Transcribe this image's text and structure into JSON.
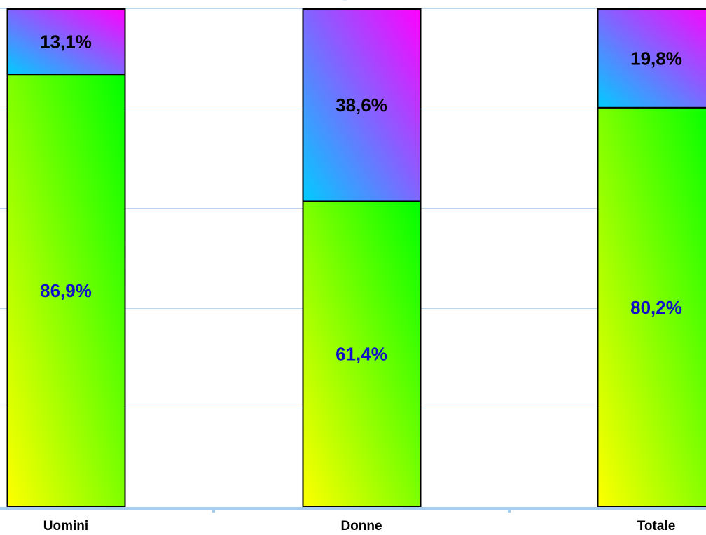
{
  "chart_data": {
    "type": "bar",
    "stacked": true,
    "categories": [
      "Uomini",
      "Donne",
      "Totale"
    ],
    "series": [
      {
        "values": [
          86.9,
          61.4,
          80.2
        ],
        "labels": [
          "86,9%",
          "61,4%",
          "80,2%"
        ],
        "label_color": "#1010c8"
      },
      {
        "values": [
          13.1,
          38.6,
          19.8
        ],
        "labels": [
          "13,1%",
          "38,6%",
          "19,8%"
        ],
        "label_color": "#000000"
      }
    ],
    "ylim": [
      0,
      100
    ],
    "grid": true,
    "legend": "none",
    "colors": {
      "series_0_gradient": [
        "#ffff00",
        "#00ff00"
      ],
      "series_1_gradient": [
        "#00ccff",
        "#ff00ff"
      ],
      "gridline": "#b9d6ee",
      "axis": "#a7cdf0"
    }
  }
}
